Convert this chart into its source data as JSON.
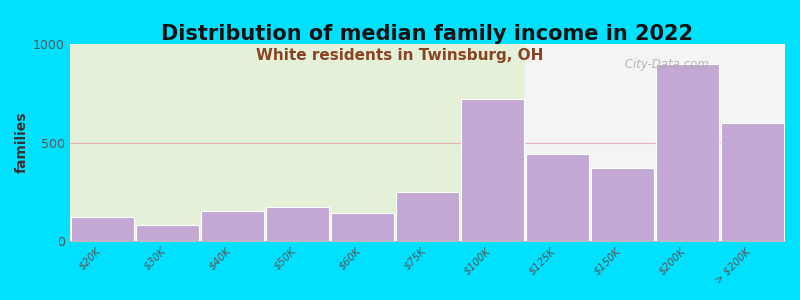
{
  "title": "Distribution of median family income in 2022",
  "subtitle": "White residents in Twinsburg, OH",
  "ylabel": "families",
  "categories": [
    "$20K",
    "$30K",
    "$40K",
    "$50K",
    "$60K",
    "$75K",
    "$100K",
    "$125K",
    "$150K",
    "$200K",
    "> $200K"
  ],
  "values": [
    120,
    80,
    155,
    175,
    140,
    250,
    720,
    440,
    370,
    900,
    600
  ],
  "bar_color": "#c4a8d4",
  "background_outer": "#00e0ff",
  "background_plot_left": "#e4f0d8",
  "background_plot_right": "#f4f4f4",
  "grid_color": "#e8b0b8",
  "ylim": [
    0,
    1000
  ],
  "yticks": [
    0,
    500,
    1000
  ],
  "title_fontsize": 15,
  "subtitle_fontsize": 11,
  "subtitle_color": "#884422",
  "watermark": " City-Data.com",
  "green_split_index": 7,
  "bar_gap": 0.02
}
